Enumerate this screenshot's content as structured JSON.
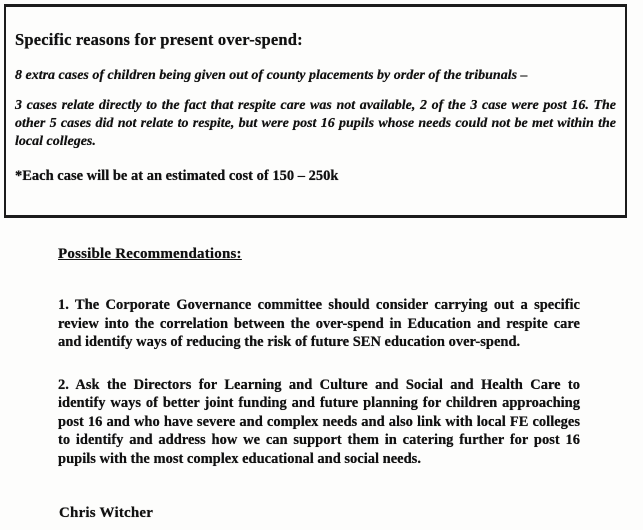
{
  "document": {
    "overspend_box": {
      "title": "Specific reasons for present over-spend:",
      "summary": "8 extra cases of children being given out of county placements by order of the tribunals –",
      "detail": "3 cases relate directly to the fact that respite care was not available, 2 of the 3 case were post 16. The other 5 cases did not relate to respite, but were post 16 pupils whose needs could not be met within the local colleges.",
      "cost_note": "*Each case will be at an estimated cost of 150 – 250k"
    },
    "recommendations": {
      "heading": "Possible Recommendations:",
      "items": [
        "1. The Corporate Governance committee should consider carrying out a specific review into the correlation between the over-spend in Education and respite care and identify ways of reducing the risk of future SEN education over-spend.",
        "2. Ask the Directors for Learning and Culture and Social and Health Care to identify ways of better joint funding and future planning for children approaching post 16 and who have severe and complex needs and also link with local FE colleges to identify and address how we can support them in catering further for post 16 pupils with the most complex educational and social needs."
      ]
    },
    "signature": "Chris Witcher"
  }
}
